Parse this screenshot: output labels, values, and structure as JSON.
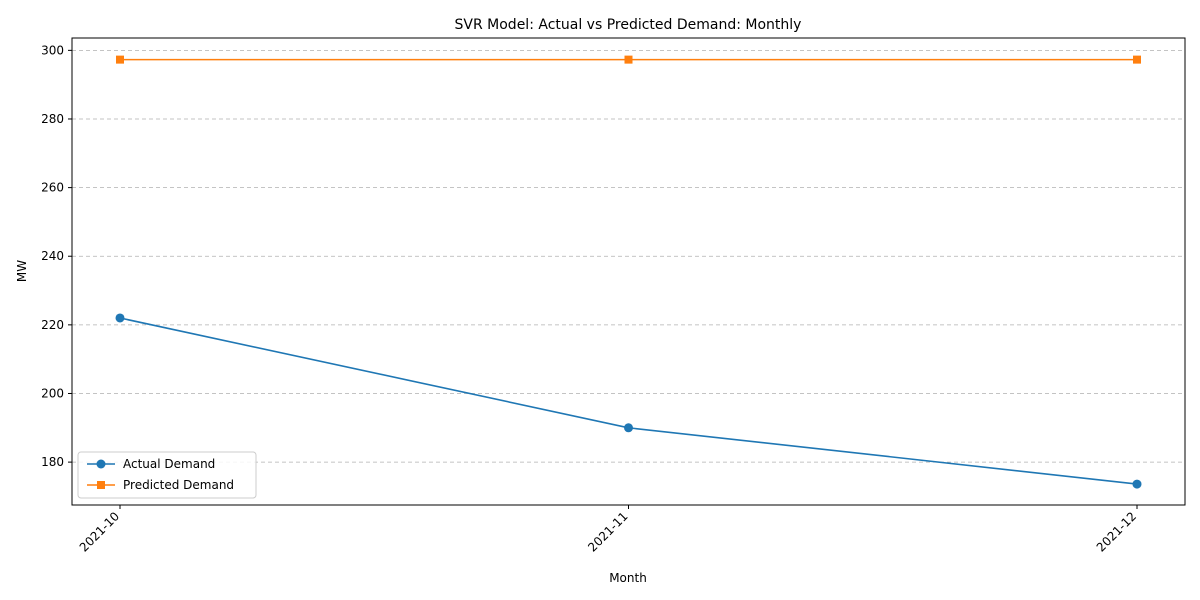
{
  "chart_data": {
    "type": "line",
    "title": "SVR Model: Actual vs Predicted Demand: Monthly",
    "xlabel": "Month",
    "ylabel": "MW",
    "categories": [
      "2021-10",
      "2021-11",
      "2021-12"
    ],
    "series": [
      {
        "name": "Actual Demand",
        "values": [
          222.0,
          190.0,
          173.6
        ],
        "color": "#1f77b4",
        "marker": "circle"
      },
      {
        "name": "Predicted Demand",
        "values": [
          297.3,
          297.3,
          297.3
        ],
        "color": "#ff7f0e",
        "marker": "square"
      }
    ],
    "ylim": [
      167.5,
      303.6
    ],
    "yticks": [
      180,
      200,
      220,
      240,
      260,
      280,
      300
    ],
    "grid": "y-dashed",
    "legend_position": "lower-left"
  }
}
